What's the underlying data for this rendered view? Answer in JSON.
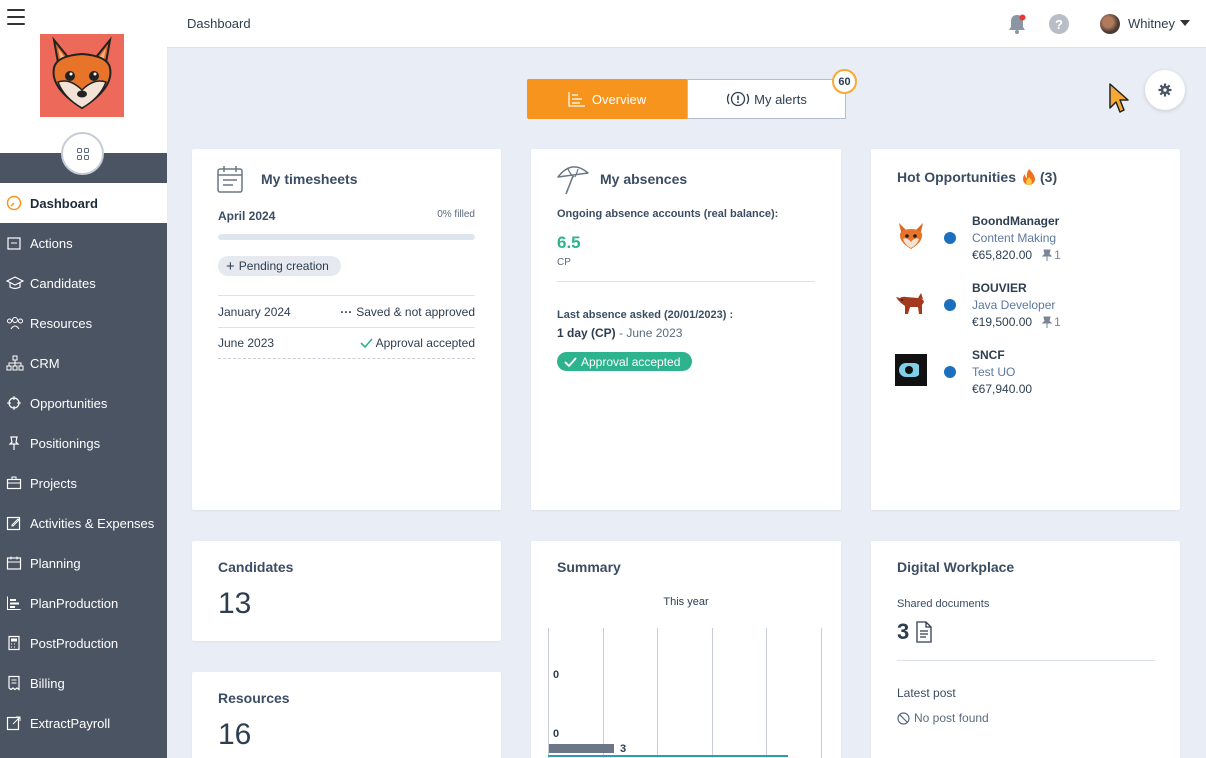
{
  "header": {
    "title": "Dashboard",
    "user_name": "Whitney"
  },
  "sidebar": {
    "items": [
      {
        "label": "Dashboard",
        "icon": "dashboard-gauge-icon",
        "active": true
      },
      {
        "label": "Actions",
        "icon": "actions-icon"
      },
      {
        "label": "Candidates",
        "icon": "graduation-cap-icon"
      },
      {
        "label": "Resources",
        "icon": "people-icon"
      },
      {
        "label": "CRM",
        "icon": "org-chart-icon"
      },
      {
        "label": "Opportunities",
        "icon": "crosshair-icon"
      },
      {
        "label": "Positionings",
        "icon": "pin-icon"
      },
      {
        "label": "Projects",
        "icon": "briefcase-icon"
      },
      {
        "label": "Activities & Expenses",
        "icon": "pencil-square-icon"
      },
      {
        "label": "Planning",
        "icon": "calendar-icon"
      },
      {
        "label": "PlanProduction",
        "icon": "gantt-icon"
      },
      {
        "label": "PostProduction",
        "icon": "calculator-icon"
      },
      {
        "label": "Billing",
        "icon": "invoice-icon"
      },
      {
        "label": "ExtractPayroll",
        "icon": "export-icon"
      }
    ]
  },
  "tabs": {
    "overview": "Overview",
    "alerts": "My alerts",
    "alerts_count": "60"
  },
  "timesheets": {
    "title": "My timesheets",
    "period": "April 2024",
    "fill": "0% filled",
    "fill_fraction": 0,
    "pending": "Pending creation",
    "rows": [
      {
        "month": "January 2024",
        "status": "Saved & not approved"
      },
      {
        "month": "June 2023",
        "status": "Approval accepted"
      }
    ]
  },
  "absences": {
    "title": "My absences",
    "subtitle": "Ongoing absence accounts (real balance):",
    "value": "6.5",
    "unit": "CP",
    "last_label": "Last absence asked (20/01/2023) :",
    "last_duration": "1 day (CP)",
    "last_period": "- June 2023",
    "status": "Approval accepted"
  },
  "hot_opportunities": {
    "title": "Hot Opportunities",
    "count": "(3)",
    "items": [
      {
        "company": "BoondManager",
        "role": "Content Making",
        "amount": "€65,820.00",
        "positionings": "1"
      },
      {
        "company": "BOUVIER",
        "role": "Java Developer",
        "amount": "€19,500.00",
        "positionings": "1"
      },
      {
        "company": "SNCF",
        "role": "Test UO",
        "amount": "€67,940.00"
      }
    ]
  },
  "candidates": {
    "title": "Candidates",
    "count": "13"
  },
  "resources": {
    "title": "Resources",
    "count": "16"
  },
  "summary": {
    "title": "Summary",
    "subtitle": "This year",
    "labels": [
      "0",
      "0",
      "3"
    ],
    "bar_value": 3
  },
  "digital_workplace": {
    "title": "Digital Workplace",
    "shared_label": "Shared documents",
    "shared_count": "3",
    "latest_post": "Latest post",
    "no_post": "No post found"
  },
  "colors": {
    "accent": "#f7941d",
    "sidebar": "#4a5462",
    "success": "#2db48e",
    "link": "#1c6fbd"
  }
}
